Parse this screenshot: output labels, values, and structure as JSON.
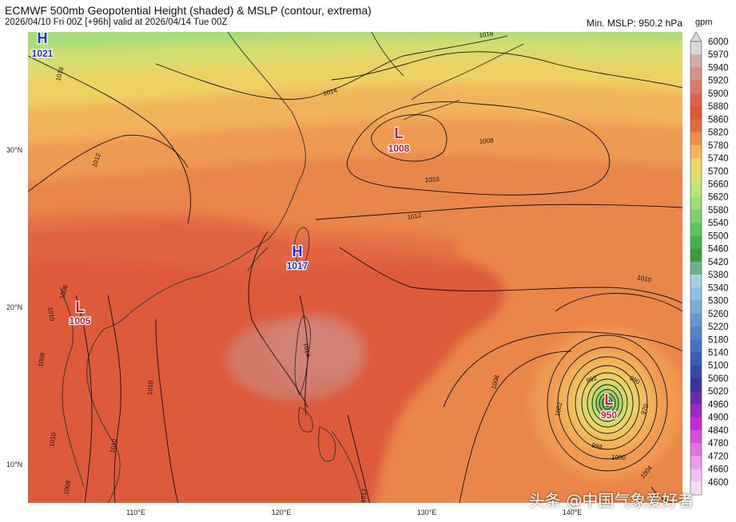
{
  "header": {
    "title": "ECMWF 500mb Geopotential Height (shaded) & MSLP (contour, extrema)",
    "subtitle": "2026/04/10 Fri 00Z [+96h] valid at 2026/04/14 Tue 00Z",
    "min_mslp": "Min. MSLP: 950.2 hPa",
    "unit": "gpm"
  },
  "axes": {
    "lat_labels": [
      "30°N",
      "20°N",
      "10°N"
    ],
    "lon_labels": [
      "110°E",
      "120°E",
      "130°E",
      "140°E"
    ]
  },
  "pressure_centers": [
    {
      "type": "H",
      "value": "1021",
      "color": "#1a2fd6"
    },
    {
      "type": "L",
      "value": "1008",
      "color": "#d0142c"
    },
    {
      "type": "H",
      "value": "1017",
      "color": "#1a2fd6"
    },
    {
      "type": "L",
      "value": "1005",
      "color": "#d0142c"
    },
    {
      "type": "L",
      "value": "950",
      "color": "#d0142c"
    }
  ],
  "isobar_labels": [
    "1018",
    "1018",
    "1014",
    "1012",
    "1008",
    "1010",
    "1012",
    "1010",
    "1006",
    "1010",
    "1008",
    "1010",
    "1014",
    "1010",
    "1008",
    "1002",
    "992",
    "990",
    "970",
    "998",
    "1000",
    "1004",
    "1012",
    "1010",
    "1008"
  ],
  "colorbar": {
    "levels": [
      "6000",
      "5970",
      "5940",
      "5920",
      "5900",
      "5880",
      "5860",
      "5820",
      "5780",
      "5740",
      "5700",
      "5660",
      "5620",
      "5580",
      "5540",
      "5500",
      "5460",
      "5420",
      "5380",
      "5340",
      "5300",
      "5260",
      "5220",
      "5180",
      "5140",
      "5100",
      "5060",
      "5020",
      "4960",
      "4900",
      "4840",
      "4780",
      "4720",
      "4660",
      "4600"
    ],
    "colors": [
      "#d8d8d8",
      "#d4aaa6",
      "#d88f86",
      "#d9786b",
      "#dc6148",
      "#de5634",
      "#e26a3a",
      "#ec8e4a",
      "#f2b45a",
      "#efd566",
      "#d8e070",
      "#bde476",
      "#9fdd74",
      "#7fd06c",
      "#5fc45c",
      "#45b04a",
      "#3f9a3e",
      "#6db08c",
      "#a9cfe2",
      "#8ebfdf",
      "#79acd8",
      "#6696d0",
      "#5483c8",
      "#4670c0",
      "#3a5cb6",
      "#3548aa",
      "#3a30a0",
      "#6a2ab0",
      "#9c28c2",
      "#c22ad2",
      "#d84cda",
      "#e274e0",
      "#ea9ce8",
      "#f2c0f0",
      "#f8dcf6"
    ]
  },
  "watermark": "头条 @中国气象爱好者"
}
